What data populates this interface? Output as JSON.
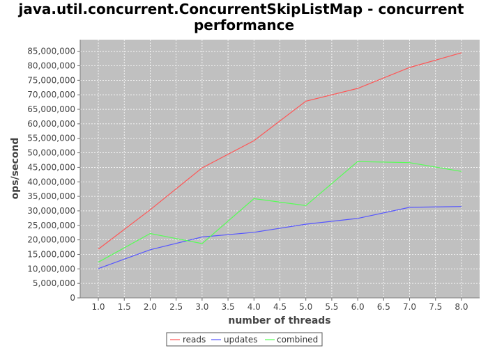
{
  "chart_data": {
    "type": "line",
    "title_lines": [
      "java.util.concurrent.ConcurrentSkipListMap - concurrent",
      "performance"
    ],
    "xlabel": "number of threads",
    "ylabel": "ops/second",
    "xlim": [
      0.65,
      8.35
    ],
    "ylim": [
      0,
      89000000
    ],
    "x_ticks": [
      "1.0",
      "1.5",
      "2.0",
      "2.5",
      "3.0",
      "3.5",
      "4.0",
      "4.5",
      "5.0",
      "5.5",
      "6.0",
      "6.5",
      "7.0",
      "7.5",
      "8.0"
    ],
    "x_tick_values": [
      1.0,
      1.5,
      2.0,
      2.5,
      3.0,
      3.5,
      4.0,
      4.5,
      5.0,
      5.5,
      6.0,
      6.5,
      7.0,
      7.5,
      8.0
    ],
    "y_ticks": [
      "0",
      "5,000,000",
      "10,000,000",
      "15,000,000",
      "20,000,000",
      "25,000,000",
      "30,000,000",
      "35,000,000",
      "40,000,000",
      "45,000,000",
      "50,000,000",
      "55,000,000",
      "60,000,000",
      "65,000,000",
      "70,000,000",
      "75,000,000",
      "80,000,000",
      "85,000,000"
    ],
    "y_tick_values": [
      0,
      5000000,
      10000000,
      15000000,
      20000000,
      25000000,
      30000000,
      35000000,
      40000000,
      45000000,
      50000000,
      55000000,
      60000000,
      65000000,
      70000000,
      75000000,
      80000000,
      85000000
    ],
    "x": [
      1,
      2,
      3,
      4,
      5,
      6,
      7,
      8
    ],
    "grid": true,
    "legend_position": "bottom",
    "series": [
      {
        "name": "reads",
        "color": "#ff5555",
        "values": [
          16800000,
          30400000,
          44800000,
          54200000,
          67800000,
          72200000,
          79400000,
          84500000
        ]
      },
      {
        "name": "updates",
        "color": "#5555ff",
        "values": [
          10100000,
          16600000,
          21000000,
          22600000,
          25400000,
          27400000,
          31200000,
          31500000
        ]
      },
      {
        "name": "combined",
        "color": "#55ff55",
        "values": [
          12300000,
          22200000,
          18700000,
          34200000,
          31800000,
          47000000,
          46600000,
          43600000
        ]
      }
    ],
    "plot_background": "#c0c0c0",
    "grid_color": "#ffffff"
  }
}
